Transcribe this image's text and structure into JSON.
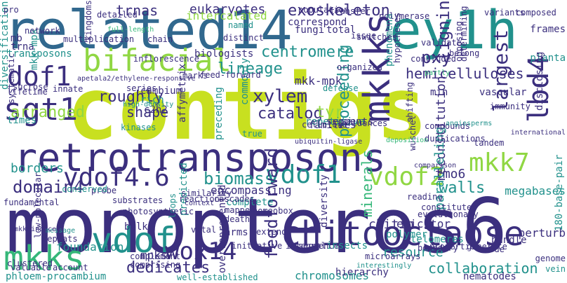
{
  "palette": {
    "purple_dark": "#440154",
    "indigo": "#3b2f7e",
    "blue": "#31688e",
    "teal": "#21918c",
    "green": "#35b779",
    "lime": "#90d743",
    "yellow": "#c8e020"
  },
  "words": [
    "contigs",
    "monopteros6",
    "related14",
    "ey1h",
    "retrotransposons",
    "chitooctaose",
    "mkkks",
    "mkks",
    "vdof",
    "bifacial",
    "dof1",
    "sgt1",
    "lbd4",
    "mkk7",
    "vdof4.6",
    "vdof1",
    "vdof2",
    "wox14",
    "exoskeleton",
    "centromere",
    "biomass",
    "domain4",
    "lineage",
    "hemicelluloses",
    "xylem",
    "catalog",
    "roughly",
    "arranged",
    "shape",
    "pxy",
    "lignin",
    "tyr",
    "largest",
    "mkk-mpk",
    "tmo6",
    "walls",
    "borders",
    "dedicates",
    "feedforward",
    "minerals",
    "chitin",
    "resource",
    "collaboration",
    "encompassing",
    "trnas",
    "eukaryotes",
    "intercalated",
    "transposons",
    "biologists",
    "proceeding",
    "reconstitution",
    "paralleling",
    "mpks",
    "chromosomes",
    "megabases",
    "foundation",
    "perturb",
    "bundle",
    "polymer",
    "elicitor",
    "insects",
    "complete",
    "repetitive",
    "defense",
    "cambium",
    "rich",
    "c2h2",
    "innate",
    "lifetime",
    "families",
    "segments",
    "mb",
    "trna",
    "diversification",
    "correspond",
    "total",
    "issue",
    "fungi",
    "phenomena",
    "hypotheses",
    "frames",
    "planta",
    "vascular",
    "disclosing",
    "opposing",
    "determining",
    "wuschel",
    "min",
    "validate",
    "telomeres",
    "nematodes",
    "genome",
    "vein",
    "hierarchy",
    "overrepresented",
    "arms",
    "predicted",
    "loops",
    "diversity",
    "integral",
    "affymetrix",
    "commonly",
    "preceding",
    "bulk",
    "times",
    "systematic",
    "true",
    "mkk-mpk",
    "apetala2/ethylene-responsive",
    "feed-forward",
    "phloem-procambium",
    "180-base-pair",
    "ubiquitin-ligase",
    "kingdoms",
    "network",
    "pro",
    "multiplication",
    "chain",
    "detailed",
    "population",
    "transfer",
    "polymerase",
    "variants",
    "composed",
    "concluded",
    "belong",
    "organized",
    "switches",
    "inflorescence",
    "distinct",
    "marks",
    "sucrose",
    "series",
    "high-density",
    "immunity",
    "influences",
    "cellulose",
    "compounds",
    "duplications",
    "tandem",
    "angiosperms",
    "international",
    "shifting",
    "comparison",
    "boundary",
    "constitutes",
    "reading",
    "evolutionary",
    "homeobox",
    "context",
    "mapped",
    "death",
    "vital",
    "repeats",
    "message",
    "low-molecular",
    "mkk-induced",
    "photosynthetic",
    "cascades",
    "reaction",
    "substrates",
    "fundamental",
    "probe",
    "clustered",
    "valuable",
    "account",
    "complement",
    "comprising",
    "initiative",
    "sequence",
    "microarrays",
    "interestingly",
    "properties",
    "generate",
    "code",
    "well-established",
    "extend",
    "similarity",
    "conserved",
    "kinases",
    "deposition",
    "partly",
    "full-length",
    "named"
  ]
}
